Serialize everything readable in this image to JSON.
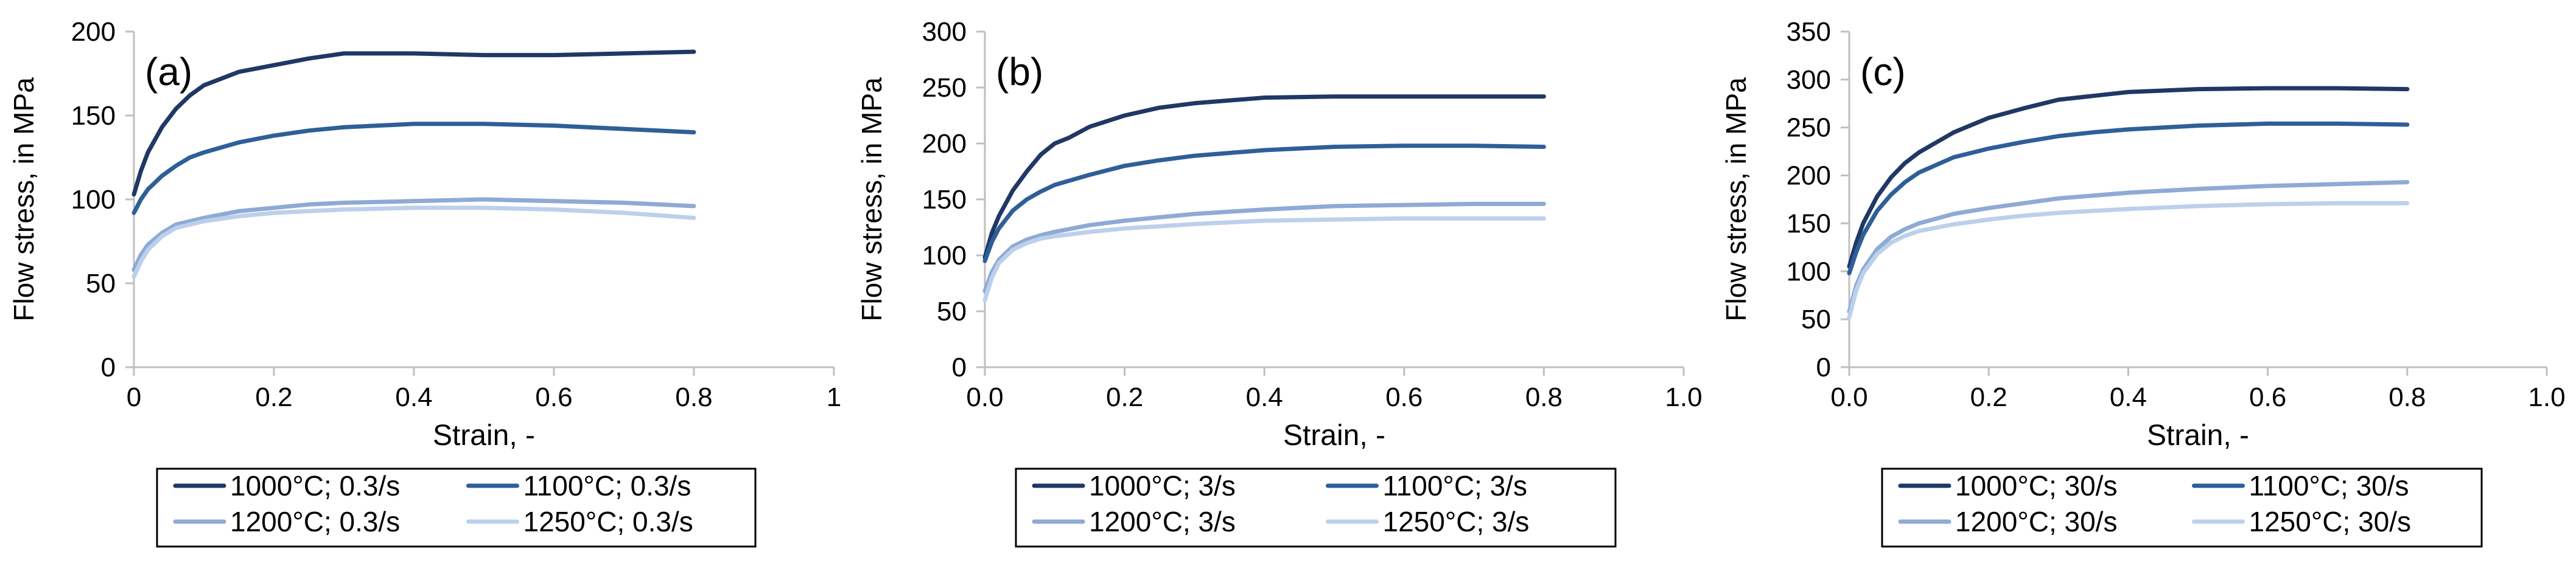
{
  "chart_data": [
    {
      "type": "line",
      "panel_label": "(a)",
      "xlabel": "Strain, -",
      "ylabel": "Flow stress, in MPa",
      "xlim": [
        0,
        1
      ],
      "ylim": [
        0,
        200
      ],
      "x_ticks": [
        0,
        0.2,
        0.4,
        0.6,
        0.8,
        1
      ],
      "x_tick_labels": [
        "0",
        "0.2",
        "0.4",
        "0.6",
        "0.8",
        "1"
      ],
      "y_ticks": [
        0,
        50,
        100,
        150,
        200
      ],
      "y_tick_labels": [
        "0",
        "50",
        "100",
        "150",
        "200"
      ],
      "series": [
        {
          "name": "1000°C; 0.3/s",
          "color": "#1f3864",
          "x": [
            0,
            0.01,
            0.02,
            0.04,
            0.06,
            0.08,
            0.1,
            0.15,
            0.2,
            0.25,
            0.3,
            0.4,
            0.5,
            0.6,
            0.7,
            0.8
          ],
          "y": [
            103,
            117,
            128,
            143,
            154,
            162,
            168,
            176,
            180,
            184,
            187,
            187,
            186,
            186,
            187,
            188
          ]
        },
        {
          "name": "1100°C; 0.3/s",
          "color": "#2e5f98",
          "x": [
            0,
            0.01,
            0.02,
            0.04,
            0.06,
            0.08,
            0.1,
            0.15,
            0.2,
            0.25,
            0.3,
            0.4,
            0.5,
            0.6,
            0.7,
            0.8
          ],
          "y": [
            92,
            100,
            106,
            114,
            120,
            125,
            128,
            134,
            138,
            141,
            143,
            145,
            145,
            144,
            142,
            140
          ]
        },
        {
          "name": "1200°C; 0.3/s",
          "color": "#8eaad5",
          "x": [
            0,
            0.01,
            0.02,
            0.04,
            0.06,
            0.08,
            0.1,
            0.15,
            0.2,
            0.25,
            0.3,
            0.4,
            0.5,
            0.6,
            0.7,
            0.8
          ],
          "y": [
            58,
            67,
            73,
            80,
            85,
            87,
            89,
            93,
            95,
            97,
            98,
            99,
            100,
            99,
            98,
            96
          ]
        },
        {
          "name": "1250°C; 0.3/s",
          "color": "#bcd0ec",
          "x": [
            0,
            0.01,
            0.02,
            0.04,
            0.06,
            0.08,
            0.1,
            0.15,
            0.2,
            0.25,
            0.3,
            0.4,
            0.5,
            0.6,
            0.7,
            0.8
          ],
          "y": [
            54,
            63,
            70,
            78,
            83,
            85,
            87,
            90,
            92,
            93,
            94,
            95,
            95,
            94,
            92,
            89
          ]
        }
      ]
    },
    {
      "type": "line",
      "panel_label": "(b)",
      "xlabel": "Strain, -",
      "ylabel": "Flow stress, in MPa",
      "xlim": [
        0,
        1
      ],
      "ylim": [
        0,
        300
      ],
      "x_ticks": [
        0,
        0.2,
        0.4,
        0.6,
        0.8,
        1
      ],
      "x_tick_labels": [
        "0.0",
        "0.2",
        "0.4",
        "0.6",
        "0.8",
        "1.0"
      ],
      "y_ticks": [
        0,
        50,
        100,
        150,
        200,
        250,
        300
      ],
      "y_tick_labels": [
        "0",
        "50",
        "100",
        "150",
        "200",
        "250",
        "300"
      ],
      "series": [
        {
          "name": "1000°C; 3/s",
          "color": "#1f3864",
          "x": [
            0,
            0.01,
            0.02,
            0.04,
            0.06,
            0.08,
            0.1,
            0.12,
            0.15,
            0.2,
            0.25,
            0.3,
            0.4,
            0.5,
            0.6,
            0.7,
            0.8
          ],
          "y": [
            98,
            120,
            135,
            158,
            175,
            190,
            200,
            205,
            215,
            225,
            232,
            236,
            241,
            242,
            242,
            242,
            242
          ]
        },
        {
          "name": "1100°C; 3/s",
          "color": "#2e5f98",
          "x": [
            0,
            0.01,
            0.02,
            0.04,
            0.06,
            0.08,
            0.1,
            0.15,
            0.2,
            0.25,
            0.3,
            0.4,
            0.5,
            0.6,
            0.7,
            0.8
          ],
          "y": [
            95,
            112,
            124,
            140,
            150,
            157,
            163,
            172,
            180,
            185,
            189,
            194,
            197,
            198,
            198,
            197
          ]
        },
        {
          "name": "1200°C; 3/s",
          "color": "#8eaad5",
          "x": [
            0,
            0.01,
            0.02,
            0.04,
            0.06,
            0.08,
            0.1,
            0.15,
            0.2,
            0.25,
            0.3,
            0.4,
            0.5,
            0.6,
            0.7,
            0.8
          ],
          "y": [
            68,
            85,
            96,
            108,
            114,
            118,
            121,
            127,
            131,
            134,
            137,
            141,
            144,
            145,
            146,
            146
          ]
        },
        {
          "name": "1250°C; 3/s",
          "color": "#bcd0ec",
          "x": [
            0,
            0.01,
            0.02,
            0.04,
            0.06,
            0.08,
            0.1,
            0.15,
            0.2,
            0.25,
            0.3,
            0.4,
            0.5,
            0.6,
            0.7,
            0.8
          ],
          "y": [
            60,
            80,
            93,
            105,
            111,
            115,
            117,
            121,
            124,
            126,
            128,
            131,
            132,
            133,
            133,
            133
          ]
        }
      ]
    },
    {
      "type": "line",
      "panel_label": "(c)",
      "xlabel": "Strain, -",
      "ylabel": "Flow stress, in MPa",
      "xlim": [
        0,
        1
      ],
      "ylim": [
        0,
        350
      ],
      "x_ticks": [
        0,
        0.2,
        0.4,
        0.6,
        0.8,
        1
      ],
      "x_tick_labels": [
        "0.0",
        "0.2",
        "0.4",
        "0.6",
        "0.8",
        "1.0"
      ],
      "y_ticks": [
        0,
        50,
        100,
        150,
        200,
        250,
        300,
        350
      ],
      "y_tick_labels": [
        "0",
        "50",
        "100",
        "150",
        "200",
        "250",
        "300",
        "350"
      ],
      "series": [
        {
          "name": "1000°C; 30/s",
          "color": "#1f3864",
          "x": [
            0,
            0.01,
            0.02,
            0.04,
            0.06,
            0.08,
            0.1,
            0.15,
            0.2,
            0.25,
            0.3,
            0.35,
            0.4,
            0.5,
            0.6,
            0.7,
            0.8
          ],
          "y": [
            105,
            130,
            150,
            178,
            198,
            213,
            224,
            245,
            260,
            270,
            279,
            283,
            287,
            290,
            291,
            291,
            290
          ]
        },
        {
          "name": "1100°C; 30/s",
          "color": "#2e5f98",
          "x": [
            0,
            0.01,
            0.02,
            0.04,
            0.06,
            0.08,
            0.1,
            0.15,
            0.2,
            0.25,
            0.3,
            0.35,
            0.4,
            0.5,
            0.6,
            0.7,
            0.8
          ],
          "y": [
            98,
            120,
            138,
            163,
            180,
            193,
            203,
            219,
            228,
            235,
            241,
            245,
            248,
            252,
            254,
            254,
            253
          ]
        },
        {
          "name": "1200°C; 30/s",
          "color": "#8eaad5",
          "x": [
            0,
            0.01,
            0.02,
            0.04,
            0.06,
            0.08,
            0.1,
            0.15,
            0.2,
            0.25,
            0.3,
            0.35,
            0.4,
            0.5,
            0.6,
            0.7,
            0.8
          ],
          "y": [
            58,
            85,
            102,
            123,
            136,
            144,
            150,
            160,
            166,
            171,
            176,
            179,
            182,
            186,
            189,
            191,
            193
          ]
        },
        {
          "name": "1250°C; 30/s",
          "color": "#bcd0ec",
          "x": [
            0,
            0.01,
            0.02,
            0.04,
            0.06,
            0.08,
            0.1,
            0.15,
            0.2,
            0.25,
            0.3,
            0.35,
            0.4,
            0.5,
            0.6,
            0.7,
            0.8
          ],
          "y": [
            52,
            80,
            98,
            118,
            130,
            137,
            142,
            149,
            154,
            158,
            161,
            163,
            165,
            168,
            170,
            171,
            171
          ]
        }
      ]
    }
  ]
}
